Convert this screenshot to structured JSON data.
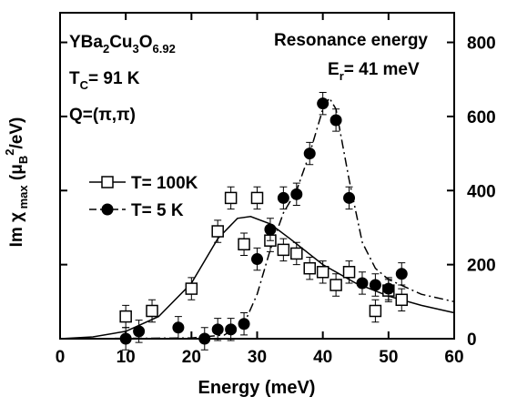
{
  "chart_data": {
    "type": "scatter",
    "title": "Resonance energy",
    "x_label": "Energy (meV)",
    "y_label": [
      {
        "t": "Im χ"
      },
      {
        "t": " max",
        "sub": true
      },
      {
        "t": " (μ"
      },
      {
        "t": "B",
        "sub": true
      },
      {
        "t": "2",
        "sup": true
      },
      {
        "t": "/eV)"
      }
    ],
    "annotations": {
      "compound": [
        {
          "t": "YBa"
        },
        {
          "t": "2",
          "sub": true
        },
        {
          "t": "Cu"
        },
        {
          "t": "3",
          "sub": true
        },
        {
          "t": "O"
        },
        {
          "t": "6.92",
          "sub": true
        }
      ],
      "tc": [
        {
          "t": "T"
        },
        {
          "t": "C",
          "sub": true
        },
        {
          "t": "= 91  K"
        }
      ],
      "q": [
        {
          "t": "Q=(π,π)"
        }
      ],
      "er": [
        {
          "t": "E"
        },
        {
          "t": "r",
          "sub": true
        },
        {
          "t": "= 41 meV"
        }
      ]
    },
    "xlim": [
      0,
      60
    ],
    "xticks": [
      0,
      10,
      20,
      30,
      40,
      50,
      60
    ],
    "ylim": [
      0,
      880
    ],
    "yticks": [
      0,
      200,
      400,
      600,
      800
    ],
    "series": [
      {
        "name": "T= 100K",
        "marker": "square",
        "color": "#000000",
        "line": "solid",
        "x": [
          10,
          14,
          20,
          24,
          26,
          28,
          30,
          32,
          34,
          36,
          38,
          40,
          42,
          44,
          48,
          50,
          52
        ],
        "values": [
          60,
          75,
          135,
          290,
          380,
          255,
          380,
          265,
          240,
          230,
          190,
          180,
          145,
          180,
          75,
          130,
          105
        ],
        "errors": [
          30,
          30,
          30,
          30,
          30,
          30,
          30,
          30,
          30,
          30,
          30,
          30,
          30,
          30,
          30,
          30,
          30
        ]
      },
      {
        "name": "T= 5 K",
        "marker": "circle",
        "color": "#000000",
        "line": "dashed",
        "x": [
          10,
          12,
          18,
          22,
          24,
          26,
          28,
          30,
          32,
          34,
          36,
          38,
          40,
          42,
          44,
          46,
          48,
          50,
          52
        ],
        "values": [
          0,
          20,
          30,
          0,
          25,
          25,
          40,
          215,
          295,
          380,
          390,
          500,
          635,
          590,
          380,
          150,
          145,
          135,
          175
        ],
        "errors": [
          30,
          30,
          30,
          30,
          30,
          30,
          30,
          30,
          30,
          30,
          30,
          30,
          30,
          30,
          30,
          30,
          30,
          30,
          30
        ]
      }
    ],
    "fits": [
      {
        "dash": "solid",
        "x": [
          0,
          5,
          10,
          15,
          20,
          24,
          27,
          29,
          32,
          35,
          40,
          45,
          50,
          55,
          60
        ],
        "values": [
          0,
          5,
          20,
          60,
          150,
          270,
          325,
          330,
          310,
          270,
          200,
          150,
          115,
          90,
          70
        ]
      },
      {
        "dash": "dashed",
        "x": [
          0,
          20,
          25,
          28,
          30,
          32,
          34,
          36,
          38,
          40,
          41,
          42,
          44,
          46,
          48,
          50,
          55,
          60
        ],
        "values": [
          0,
          2,
          10,
          40,
          120,
          240,
          340,
          400,
          500,
          620,
          650,
          620,
          430,
          260,
          190,
          160,
          120,
          100
        ]
      }
    ]
  }
}
